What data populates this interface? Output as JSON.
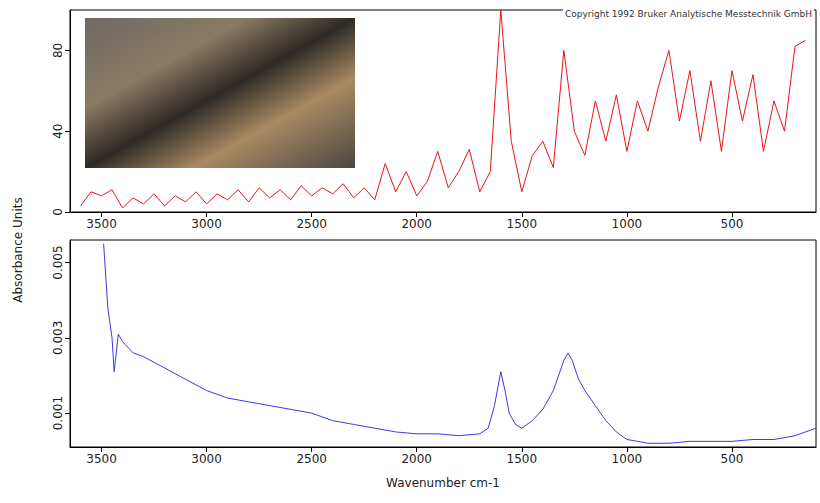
{
  "chart_data": [
    {
      "type": "line",
      "ylabel": "Absorbance Units",
      "annotation": "Copyright 1992 Bruker Analytische Messtechnik GmbH",
      "xlim": [
        3650,
        100
      ],
      "xticks": [
        3500,
        3000,
        2500,
        2000,
        1500,
        1000,
        500
      ],
      "ylim": [
        0,
        100
      ],
      "yticks": [
        0,
        40,
        80
      ],
      "grid": false,
      "x": [
        3600,
        3550,
        3500,
        3450,
        3400,
        3350,
        3300,
        3250,
        3200,
        3150,
        3100,
        3050,
        3000,
        2950,
        2900,
        2850,
        2800,
        2750,
        2700,
        2650,
        2600,
        2550,
        2500,
        2450,
        2400,
        2350,
        2300,
        2250,
        2200,
        2150,
        2100,
        2050,
        2000,
        1950,
        1900,
        1850,
        1800,
        1750,
        1700,
        1650,
        1600,
        1550,
        1500,
        1450,
        1400,
        1350,
        1300,
        1250,
        1200,
        1150,
        1100,
        1050,
        1000,
        950,
        900,
        850,
        800,
        750,
        700,
        650,
        600,
        550,
        500,
        450,
        400,
        350,
        300,
        250,
        200,
        150
      ],
      "series": [
        {
          "color": "#e8141c",
          "values": [
            3,
            10,
            8,
            11,
            2,
            7,
            4,
            9,
            3,
            8,
            5,
            10,
            4,
            9,
            6,
            11,
            5,
            12,
            7,
            11,
            6,
            13,
            8,
            12,
            9,
            14,
            7,
            12,
            6,
            24,
            10,
            20,
            8,
            15,
            30,
            12,
            20,
            31,
            10,
            20,
            100,
            35,
            10,
            28,
            35,
            22,
            80,
            40,
            28,
            55,
            35,
            58,
            30,
            55,
            40,
            62,
            80,
            45,
            70,
            35,
            65,
            30,
            70,
            45,
            68,
            30,
            55,
            40,
            82,
            85
          ]
        }
      ]
    },
    {
      "type": "line",
      "xlabel": "Wavenumber cm-1",
      "xlim": [
        3650,
        100
      ],
      "xticks": [
        3500,
        3000,
        2500,
        2000,
        1500,
        1000,
        500
      ],
      "ylim": [
        0.0001,
        0.0056
      ],
      "yticks": [
        0.001,
        0.003,
        0.005
      ],
      "grid": false,
      "x": [
        3490,
        3470,
        3450,
        3440,
        3420,
        3400,
        3350,
        3300,
        3200,
        3100,
        3000,
        2900,
        2800,
        2700,
        2600,
        2500,
        2400,
        2300,
        2200,
        2100,
        2000,
        1900,
        1800,
        1700,
        1660,
        1630,
        1600,
        1580,
        1560,
        1530,
        1500,
        1450,
        1400,
        1350,
        1300,
        1280,
        1260,
        1230,
        1200,
        1150,
        1100,
        1050,
        1000,
        950,
        900,
        800,
        700,
        600,
        500,
        400,
        300,
        200,
        150,
        100
      ],
      "series": [
        {
          "color": "#3a3ae6",
          "values": [
            0.0055,
            0.0038,
            0.003,
            0.0021,
            0.0031,
            0.0029,
            0.0026,
            0.0025,
            0.0022,
            0.0019,
            0.0016,
            0.0014,
            0.0013,
            0.0012,
            0.0011,
            0.001,
            0.0008,
            0.0007,
            0.0006,
            0.0005,
            0.00045,
            0.00045,
            0.0004,
            0.00045,
            0.0006,
            0.0012,
            0.0021,
            0.0016,
            0.001,
            0.0007,
            0.0006,
            0.0008,
            0.0011,
            0.0016,
            0.0024,
            0.0026,
            0.0024,
            0.0019,
            0.0016,
            0.0012,
            0.0008,
            0.0005,
            0.0003,
            0.00025,
            0.0002,
            0.0002,
            0.00025,
            0.00025,
            0.00025,
            0.0003,
            0.0003,
            0.0004,
            0.0005,
            0.0006
          ]
        }
      ]
    }
  ]
}
